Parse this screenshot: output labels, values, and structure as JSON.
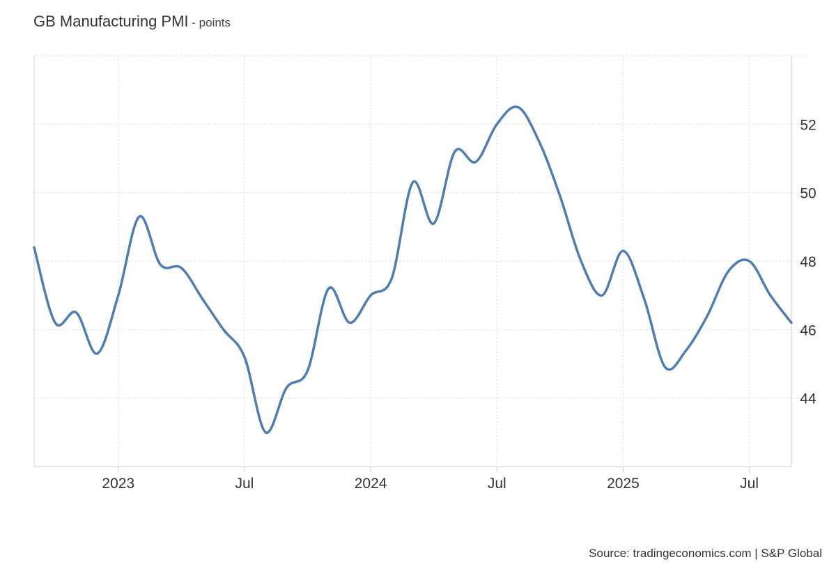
{
  "chart_data": {
    "type": "line",
    "title": "GB Manufacturing PMI",
    "unit": "points",
    "title_separator": " - ",
    "source": "Source: tradingeconomics.com | S&P Global",
    "xlabel": "",
    "ylabel": "",
    "ylim": [
      42,
      54
    ],
    "yticks": [
      44,
      46,
      48,
      50,
      52
    ],
    "xticks": [
      {
        "label": "2023",
        "month_index": 0
      },
      {
        "label": "Jul",
        "month_index": 6
      },
      {
        "label": "2024",
        "month_index": 12
      },
      {
        "label": "Jul",
        "month_index": 18
      },
      {
        "label": "2025",
        "month_index": 24
      },
      {
        "label": "Jul",
        "month_index": 30
      }
    ],
    "x_range_months": [
      -4,
      32
    ],
    "grid": true,
    "line_color": "#4e7db3",
    "series": [
      {
        "name": "GB Manufacturing PMI",
        "x": [
          -4,
          -3,
          -2,
          -1,
          0,
          1,
          2,
          3,
          4,
          5,
          6,
          7,
          8,
          9,
          10,
          11,
          12,
          13,
          14,
          15,
          16,
          17,
          18,
          19,
          20,
          21,
          22,
          23,
          24,
          25,
          26,
          27,
          28,
          29,
          30,
          31,
          32
        ],
        "values": [
          48.4,
          46.2,
          46.5,
          45.3,
          47.0,
          49.3,
          47.9,
          47.8,
          46.9,
          46.0,
          45.2,
          43.0,
          44.3,
          44.8,
          47.2,
          46.2,
          47.0,
          47.5,
          50.3,
          49.1,
          51.2,
          50.9,
          52.0,
          52.5,
          51.5,
          49.9,
          48.0,
          47.0,
          48.3,
          46.9,
          44.9,
          45.4,
          46.4,
          47.7,
          48.0,
          47.0,
          46.2
        ]
      }
    ]
  }
}
